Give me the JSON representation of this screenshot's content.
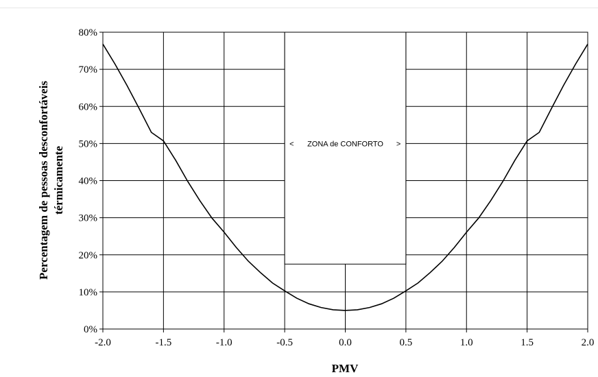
{
  "chart_data": {
    "type": "line",
    "title": "",
    "xlabel": "PMV",
    "ylabel": "Percentagem de pessoas desconfortáveis térmicamente",
    "ylabel_lines": [
      "Percentagem de pessoas desconfortáveis",
      "térmicamente"
    ],
    "xlim": [
      -2.0,
      2.0
    ],
    "ylim": [
      0,
      80
    ],
    "x_ticks": [
      "-2.0",
      "-1.5",
      "-1.0",
      "-0.5",
      "0.0",
      "0.5",
      "1.0",
      "1.5",
      "2.0"
    ],
    "y_ticks": [
      "0%",
      "10%",
      "20%",
      "30%",
      "40%",
      "50%",
      "60%",
      "70%",
      "80%"
    ],
    "x_tick_values": [
      -2.0,
      -1.5,
      -1.0,
      -0.5,
      0.0,
      0.5,
      1.0,
      1.5,
      2.0
    ],
    "y_tick_values": [
      0,
      10,
      20,
      30,
      40,
      50,
      60,
      70,
      80
    ],
    "grid": true,
    "legend": "none",
    "series": [
      {
        "x": [
          -2.0,
          -1.9,
          -1.8,
          -1.7,
          -1.6,
          -1.5,
          -1.4,
          -1.3,
          -1.2,
          -1.1,
          -1.0,
          -0.9,
          -0.8,
          -0.7,
          -0.6,
          -0.5,
          -0.4,
          -0.3,
          -0.2,
          -0.1,
          0.0,
          0.1,
          0.2,
          0.3,
          0.4,
          0.5,
          0.6,
          0.7,
          0.8,
          0.9,
          1.0,
          1.1,
          1.2,
          1.3,
          1.4,
          1.5,
          1.6,
          1.7,
          1.8,
          1.9,
          2.0
        ],
        "values": [
          76.8,
          71.4,
          65.6,
          59.4,
          53.0,
          50.7,
          45.5,
          39.8,
          34.6,
          29.9,
          26.1,
          22.0,
          18.3,
          15.2,
          12.4,
          10.3,
          8.3,
          6.8,
          5.8,
          5.2,
          5.0,
          5.2,
          5.8,
          6.8,
          8.3,
          10.3,
          12.4,
          15.2,
          18.3,
          22.0,
          26.1,
          29.9,
          34.6,
          39.8,
          45.5,
          50.7,
          53.0,
          59.4,
          65.6,
          71.4,
          76.8
        ]
      }
    ],
    "annotation": {
      "label": "ZONA de CONFORTO",
      "left_marker": "<",
      "right_marker": ">",
      "box_x_range": [
        -0.5,
        0.5
      ],
      "box_y_range": [
        17.5,
        80
      ]
    }
  }
}
